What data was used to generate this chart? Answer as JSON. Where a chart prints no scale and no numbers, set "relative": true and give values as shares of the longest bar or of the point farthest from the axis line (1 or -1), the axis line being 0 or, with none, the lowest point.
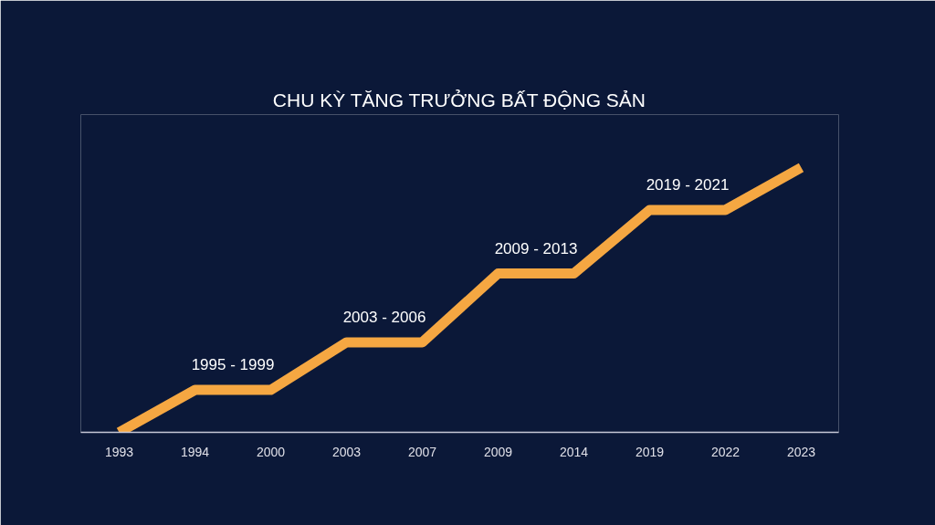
{
  "chart_data": {
    "type": "line",
    "title": "CHU KỲ TĂNG TRƯỞNG BẤT ĐỘNG SẢN",
    "relative": true,
    "categories": [
      "1993",
      "1994",
      "2000",
      "2003",
      "2007",
      "2009",
      "2014",
      "2019",
      "2022",
      "2023"
    ],
    "series": [
      {
        "color": "#f5a742",
        "values": [
          0,
          0.16,
          0.16,
          0.34,
          0.34,
          0.6,
          0.6,
          0.84,
          0.84,
          1.0
        ]
      }
    ],
    "annotations": [
      {
        "text": "1995 - 1999",
        "x": "1994",
        "y": 0.16
      },
      {
        "text": "2003 - 2006",
        "x": "2003",
        "y": 0.34
      },
      {
        "text": "2009 - 2013",
        "x": "2009",
        "y": 0.6
      },
      {
        "text": "2019 - 2021",
        "x": "2019",
        "y": 0.84
      }
    ]
  }
}
